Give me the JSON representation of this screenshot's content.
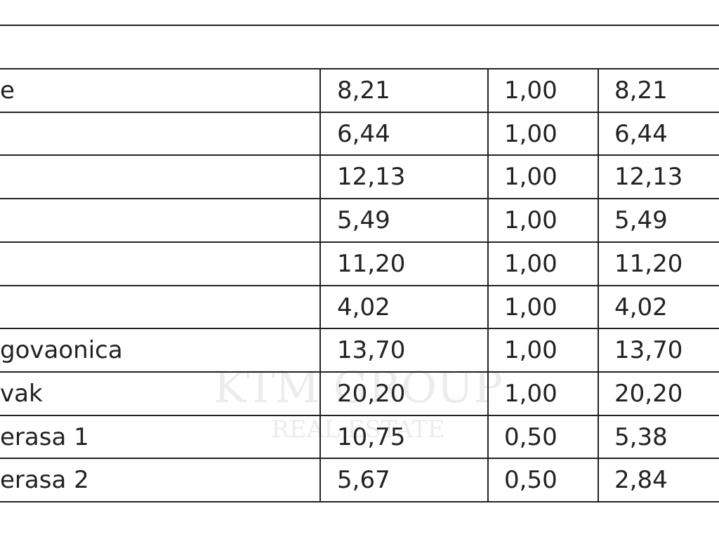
{
  "table": {
    "rows": [
      [
        "e",
        "8,21",
        "1,00",
        "8,21"
      ],
      [
        null,
        "6,44",
        "1,00",
        "6,44"
      ],
      [
        null,
        "12,13",
        "1,00",
        "12,13"
      ],
      [
        null,
        "5,49",
        "1,00",
        "5,49"
      ],
      [
        null,
        "11,20",
        "1,00",
        "11,20"
      ],
      [
        null,
        "4,02",
        "1,00",
        "4,02"
      ],
      [
        "govaonica",
        "13,70",
        "1,00",
        "13,70"
      ],
      [
        "vak",
        "20,20",
        "1,00",
        "20,20"
      ],
      [
        "erasa 1",
        "10,75",
        "0,50",
        "5,38"
      ],
      [
        "erasa 2",
        "5,67",
        "0,50",
        "2,84"
      ]
    ]
  },
  "watermark": {
    "title": "KTM GROUP",
    "subtitle": "REAL ESTATE"
  }
}
